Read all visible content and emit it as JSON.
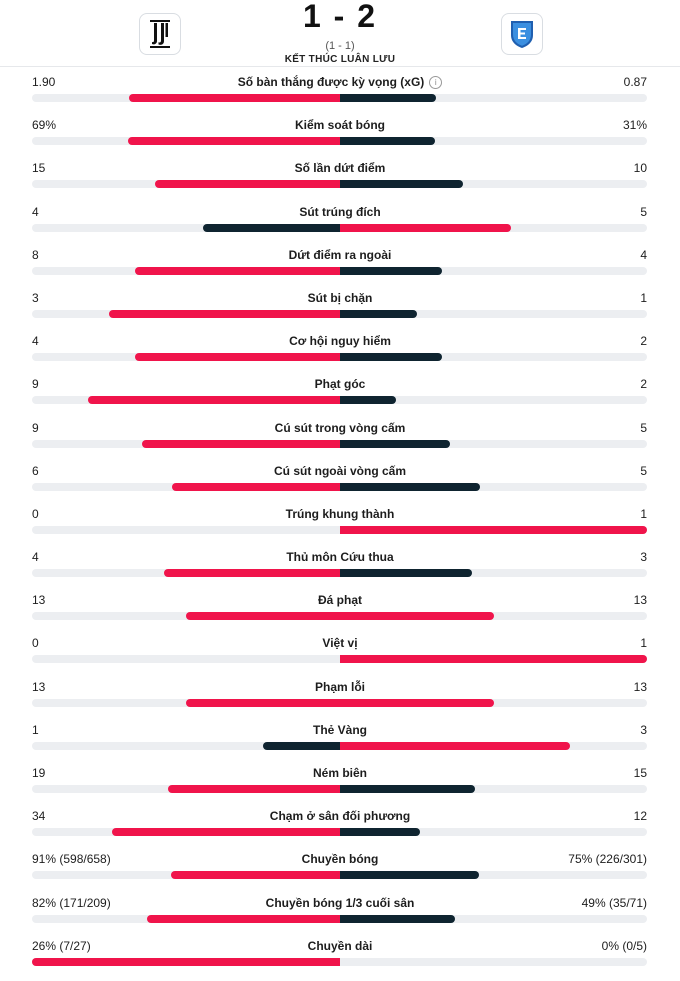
{
  "header": {
    "score": "1 - 2",
    "aggregate": "(1 - 1)",
    "status": "KẾT THÚC LUÂN LƯU"
  },
  "colors": {
    "better": "#f0144b",
    "worse": "#0f2430",
    "track": "#eceef1"
  },
  "icons": {
    "info": "info-circle-icon",
    "home_logo": "juventus-crest-icon",
    "away_logo": "empoli-crest-icon"
  },
  "stats": [
    {
      "label": "Số bàn thắng được kỳ vọng (xG)",
      "home": "1.90",
      "away": "0.87",
      "home_share": 0.686,
      "away_share": 0.314,
      "info": true
    },
    {
      "label": "Kiểm soát bóng",
      "home": "69%",
      "away": "31%",
      "home_share": 0.69,
      "away_share": 0.31
    },
    {
      "label": "Số lần dứt điểm",
      "home": "15",
      "away": "10",
      "home_share": 0.6,
      "away_share": 0.4
    },
    {
      "label": "Sút trúng đích",
      "home": "4",
      "away": "5",
      "home_share": 0.444,
      "away_share": 0.556
    },
    {
      "label": "Dứt điểm ra ngoài",
      "home": "8",
      "away": "4",
      "home_share": 0.667,
      "away_share": 0.333
    },
    {
      "label": "Sút bị chặn",
      "home": "3",
      "away": "1",
      "home_share": 0.75,
      "away_share": 0.25
    },
    {
      "label": "Cơ hội nguy hiểm",
      "home": "4",
      "away": "2",
      "home_share": 0.667,
      "away_share": 0.333
    },
    {
      "label": "Phạt góc",
      "home": "9",
      "away": "2",
      "home_share": 0.818,
      "away_share": 0.182
    },
    {
      "label": "Cú sút trong vòng cấm",
      "home": "9",
      "away": "5",
      "home_share": 0.643,
      "away_share": 0.357
    },
    {
      "label": "Cú sút ngoài vòng cấm",
      "home": "6",
      "away": "5",
      "home_share": 0.545,
      "away_share": 0.455
    },
    {
      "label": "Trúng khung thành",
      "home": "0",
      "away": "1",
      "home_share": 0,
      "away_share": 1
    },
    {
      "label": "Thủ môn Cứu thua",
      "home": "4",
      "away": "3",
      "home_share": 0.571,
      "away_share": 0.429
    },
    {
      "label": "Đá phạt",
      "home": "13",
      "away": "13",
      "home_share": 0.5,
      "away_share": 0.5
    },
    {
      "label": "Việt vị",
      "home": "0",
      "away": "1",
      "home_share": 0,
      "away_share": 1
    },
    {
      "label": "Phạm lỗi",
      "home": "13",
      "away": "13",
      "home_share": 0.5,
      "away_share": 0.5
    },
    {
      "label": "Thẻ Vàng",
      "home": "1",
      "away": "3",
      "home_share": 0.25,
      "away_share": 0.75
    },
    {
      "label": "Ném biên",
      "home": "19",
      "away": "15",
      "home_share": 0.559,
      "away_share": 0.441
    },
    {
      "label": "Chạm ở sân đối phương",
      "home": "34",
      "away": "12",
      "home_share": 0.739,
      "away_share": 0.261
    },
    {
      "label": "Chuyền bóng",
      "home": "91% (598/658)",
      "away": "75% (226/301)",
      "home_share": 0.548,
      "away_share": 0.452
    },
    {
      "label": "Chuyền bóng 1/3 cuối sân",
      "home": "82% (171/209)",
      "away": "49% (35/71)",
      "home_share": 0.626,
      "away_share": 0.374
    },
    {
      "label": "Chuyền dài",
      "home": "26% (7/27)",
      "away": "0% (0/5)",
      "home_share": 1,
      "away_share": 0
    }
  ]
}
